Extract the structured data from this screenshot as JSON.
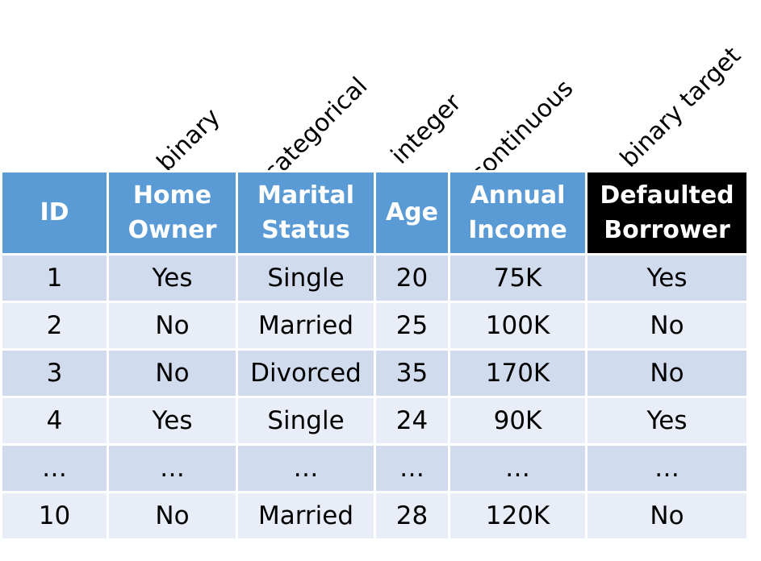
{
  "type_labels": [
    "binary",
    "categorical",
    "integer",
    "continuous",
    "binary target"
  ],
  "headers": [
    {
      "line1": "ID",
      "line2": ""
    },
    {
      "line1": "Home",
      "line2": "Owner"
    },
    {
      "line1": "Marital",
      "line2": "Status"
    },
    {
      "line1": "Age",
      "line2": ""
    },
    {
      "line1": "Annual",
      "line2": "Income"
    },
    {
      "line1": "Defaulted",
      "line2": "Borrower"
    }
  ],
  "rows": [
    [
      "1",
      "Yes",
      "Single",
      "20",
      "75K",
      "Yes"
    ],
    [
      "2",
      "No",
      "Married",
      "25",
      "100K",
      "No"
    ],
    [
      "3",
      "No",
      "Divorced",
      "35",
      "170K",
      "No"
    ],
    [
      "4",
      "Yes",
      "Single",
      "24",
      "90K",
      "Yes"
    ],
    [
      "…",
      "…",
      "…",
      "…",
      "…",
      "…"
    ],
    [
      "10",
      "No",
      "Married",
      "28",
      "120K",
      "No"
    ]
  ],
  "colors": {
    "header_blue": "#5b9bd5",
    "header_target": "#000000",
    "row_dark": "#d0dcee",
    "row_light": "#e8edf7"
  }
}
